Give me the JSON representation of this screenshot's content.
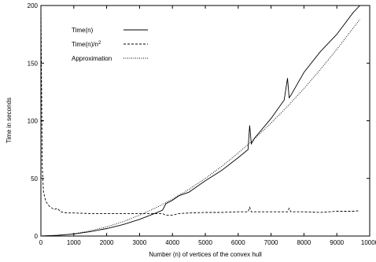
{
  "chart_data": {
    "type": "line",
    "xlabel": "Number (n) of vertices of the convex hull",
    "ylabel": "Time in seconds",
    "xlim": [
      0,
      10000
    ],
    "ylim": [
      0,
      200
    ],
    "x_ticks": [
      "0",
      "1000",
      "2000",
      "3000",
      "4000",
      "5000",
      "6000",
      "7000",
      "8000",
      "9000",
      "10000"
    ],
    "y_ticks": [
      "0",
      "50",
      "100",
      "150",
      "200"
    ],
    "grid": false,
    "legend_position": "top-left",
    "series": [
      {
        "name": "Time(n)",
        "line_style": "solid",
        "x": [
          0,
          500,
          1000,
          1500,
          2000,
          2500,
          3000,
          3500,
          3700,
          3800,
          4000,
          4200,
          4500,
          5000,
          5500,
          6000,
          6300,
          6350,
          6400,
          6500,
          7000,
          7400,
          7500,
          7550,
          7600,
          8000,
          8500,
          9000,
          9500,
          9700
        ],
        "y": [
          0,
          0.6,
          1.8,
          3.8,
          6.5,
          10,
          14.5,
          20,
          22.5,
          28,
          31,
          35,
          38,
          48,
          57,
          68,
          75,
          96,
          80,
          85,
          102,
          118,
          137,
          120,
          122,
          142,
          160,
          175,
          194,
          200
        ]
      },
      {
        "name": "Time(n)/n",
        "name_sup": "2",
        "line_style": "dashed",
        "x": [
          0,
          40,
          80,
          150,
          250,
          400,
          500,
          600,
          800,
          1000,
          1500,
          2000,
          2500,
          3000,
          3500,
          3700,
          3800,
          4000,
          4200,
          4500,
          5000,
          5500,
          6000,
          6300,
          6350,
          6400,
          6500,
          7000,
          7500,
          7550,
          7600,
          8000,
          8500,
          9000,
          9500,
          9700
        ],
        "y": [
          200,
          60,
          38,
          30,
          26,
          23,
          24,
          21,
          20,
          20,
          19.5,
          19.5,
          19.5,
          19.5,
          19.5,
          19.5,
          18,
          18,
          19.5,
          20,
          20.5,
          20.5,
          21,
          21,
          25,
          21,
          21,
          21,
          21,
          24,
          21,
          21,
          20.5,
          21.5,
          21.5,
          22
        ]
      },
      {
        "name": "Approximation",
        "line_style": "dotted",
        "x": [
          0,
          500,
          1000,
          1500,
          2000,
          2500,
          3000,
          3500,
          4000,
          4500,
          5000,
          5500,
          6000,
          6500,
          7000,
          7500,
          8000,
          8500,
          9000,
          9500,
          9700
        ],
        "y": [
          0,
          0.5,
          2,
          4.5,
          8,
          12.5,
          18,
          24.5,
          32,
          40.5,
          50,
          60.5,
          72,
          84.5,
          98,
          112.5,
          128,
          144.5,
          162,
          180.5,
          188
        ]
      }
    ]
  }
}
